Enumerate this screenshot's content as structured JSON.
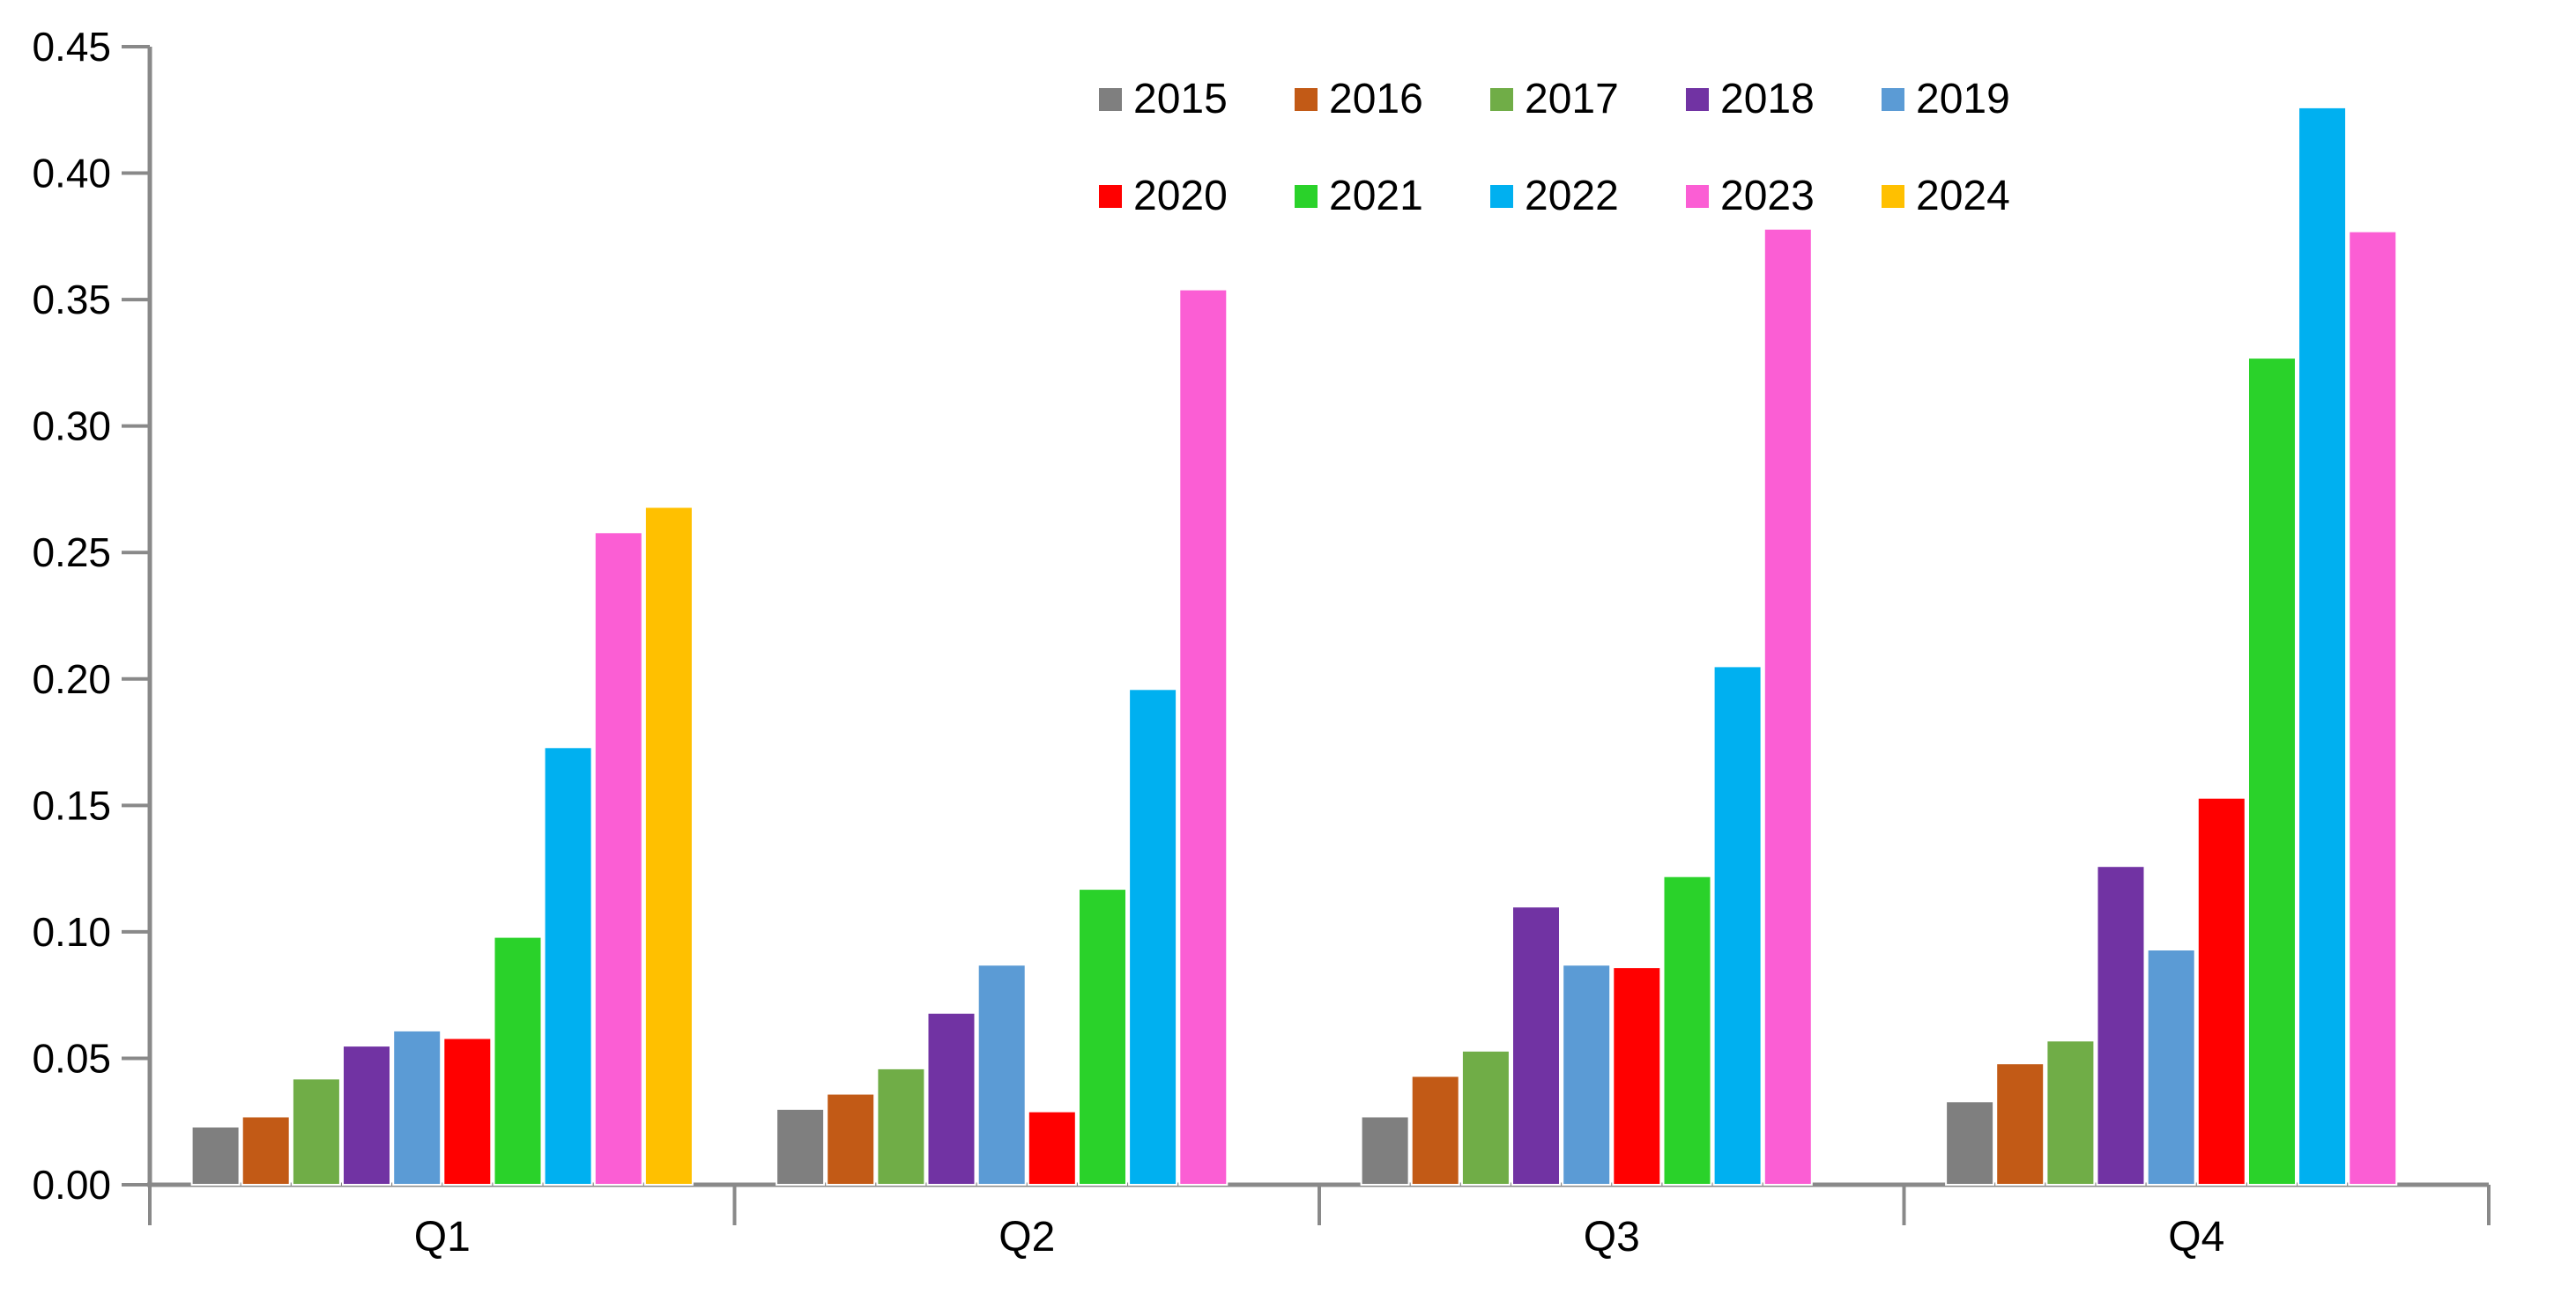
{
  "chart_data": {
    "type": "bar",
    "title": "",
    "xlabel": "",
    "ylabel": "",
    "categories": [
      "Q1",
      "Q2",
      "Q3",
      "Q4"
    ],
    "series": [
      {
        "name": "2015",
        "color": "#7F7F7F",
        "values": [
          0.023,
          0.03,
          0.027,
          0.033
        ]
      },
      {
        "name": "2016",
        "color": "#C25A16",
        "values": [
          0.027,
          0.036,
          0.043,
          0.048
        ]
      },
      {
        "name": "2017",
        "color": "#70AD47",
        "values": [
          0.042,
          0.046,
          0.053,
          0.057
        ]
      },
      {
        "name": "2018",
        "color": "#7133A3",
        "values": [
          0.055,
          0.068,
          0.11,
          0.126
        ]
      },
      {
        "name": "2019",
        "color": "#5B9BD5",
        "values": [
          0.061,
          0.087,
          0.087,
          0.093
        ]
      },
      {
        "name": "2020",
        "color": "#FF0000",
        "values": [
          0.058,
          0.029,
          0.086,
          0.153
        ]
      },
      {
        "name": "2021",
        "color": "#2AD22A",
        "values": [
          0.098,
          0.117,
          0.122,
          0.327
        ]
      },
      {
        "name": "2022",
        "color": "#00B0F0",
        "values": [
          0.173,
          0.196,
          0.205,
          0.426
        ]
      },
      {
        "name": "2023",
        "color": "#FB5ED4",
        "values": [
          0.258,
          0.354,
          0.378,
          0.377
        ]
      },
      {
        "name": "2024",
        "color": "#FFC000",
        "values": [
          0.268,
          null,
          null,
          null
        ]
      }
    ],
    "y_axis": {
      "min": 0,
      "max": 0.45,
      "step": 0.05,
      "tick_labels": [
        "0.00",
        "0.05",
        "0.10",
        "0.15",
        "0.20",
        "0.25",
        "0.30",
        "0.35",
        "0.40",
        "0.45"
      ]
    },
    "x_axis": {
      "tick_labels": [
        "Q1",
        "Q2",
        "Q3",
        "Q4"
      ]
    },
    "legend": {
      "position": "top-right-of-center",
      "rows": [
        [
          "2015",
          "2016",
          "2017",
          "2018",
          "2019"
        ],
        [
          "2020",
          "2021",
          "2022",
          "2023",
          "2024"
        ]
      ]
    },
    "grid": false,
    "axis_color": "#898989",
    "text_color": "#000000",
    "background_color": "#FFFFFF"
  }
}
